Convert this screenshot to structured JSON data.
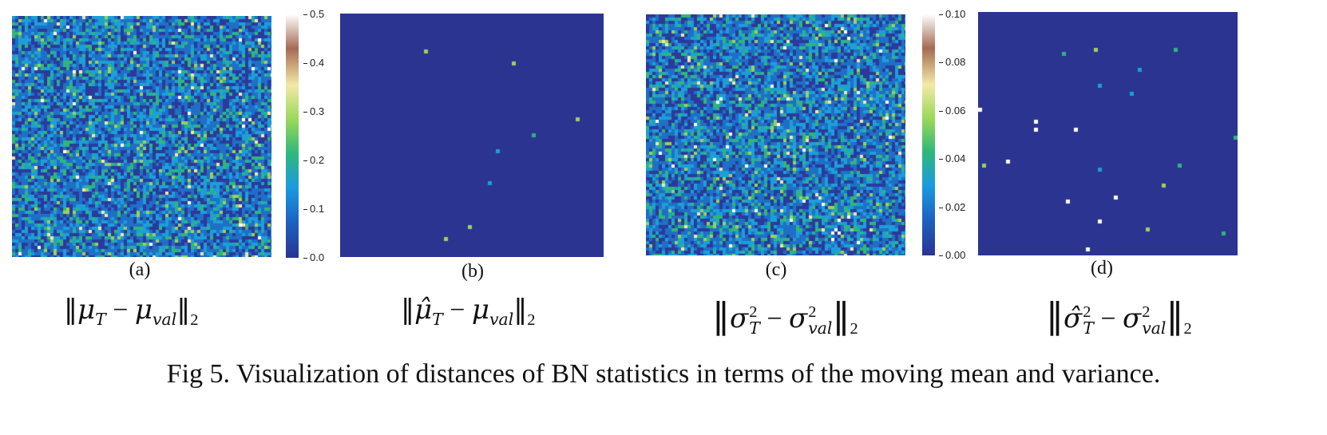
{
  "figure": {
    "caption": "Fig 5. Visualization of distances of BN statistics in terms of the moving mean and variance.",
    "colormap": [
      "#2a3492",
      "#1d5fbf",
      "#1a9be0",
      "#2fb87a",
      "#9bd85a",
      "#f3e9a6",
      "#a46b55",
      "#ffffff"
    ],
    "background_color": "#2b3491"
  },
  "panels": [
    {
      "label": "(a)",
      "formula_parts": {
        "a": "μ",
        "a_sub": "T",
        "b": "μ",
        "b_sub": "val",
        "norm_sub": "2"
      },
      "density": "dense",
      "scale_max": 0.5
    },
    {
      "label": "(b)",
      "formula_parts": {
        "a": "μ̂",
        "a_sub": "T",
        "b": "μ",
        "b_sub": "val",
        "norm_sub": "2"
      },
      "density": "sparse",
      "scale_max": 0.5
    },
    {
      "label": "(c)",
      "formula_parts": {
        "a": "σ",
        "a_sub": "T",
        "a_sup": "2",
        "b": "σ",
        "b_sub": "val",
        "b_sup": "2",
        "norm_sub": "2"
      },
      "density": "dense",
      "scale_max": 0.1
    },
    {
      "label": "(d)",
      "formula_parts": {
        "a": "σ̂",
        "a_sub": "T",
        "a_sup": "2",
        "b": "σ",
        "b_sub": "val",
        "b_sup": "2",
        "norm_sub": "2"
      },
      "density": "sparse",
      "scale_max": 0.1
    }
  ],
  "colorbars": [
    {
      "ticks": [
        "0.5",
        "0.4",
        "0.3",
        "0.2",
        "0.1",
        "0.0"
      ]
    },
    {
      "ticks": [
        "0.10",
        "0.08",
        "0.06",
        "0.04",
        "0.02",
        "0.00"
      ]
    }
  ]
}
